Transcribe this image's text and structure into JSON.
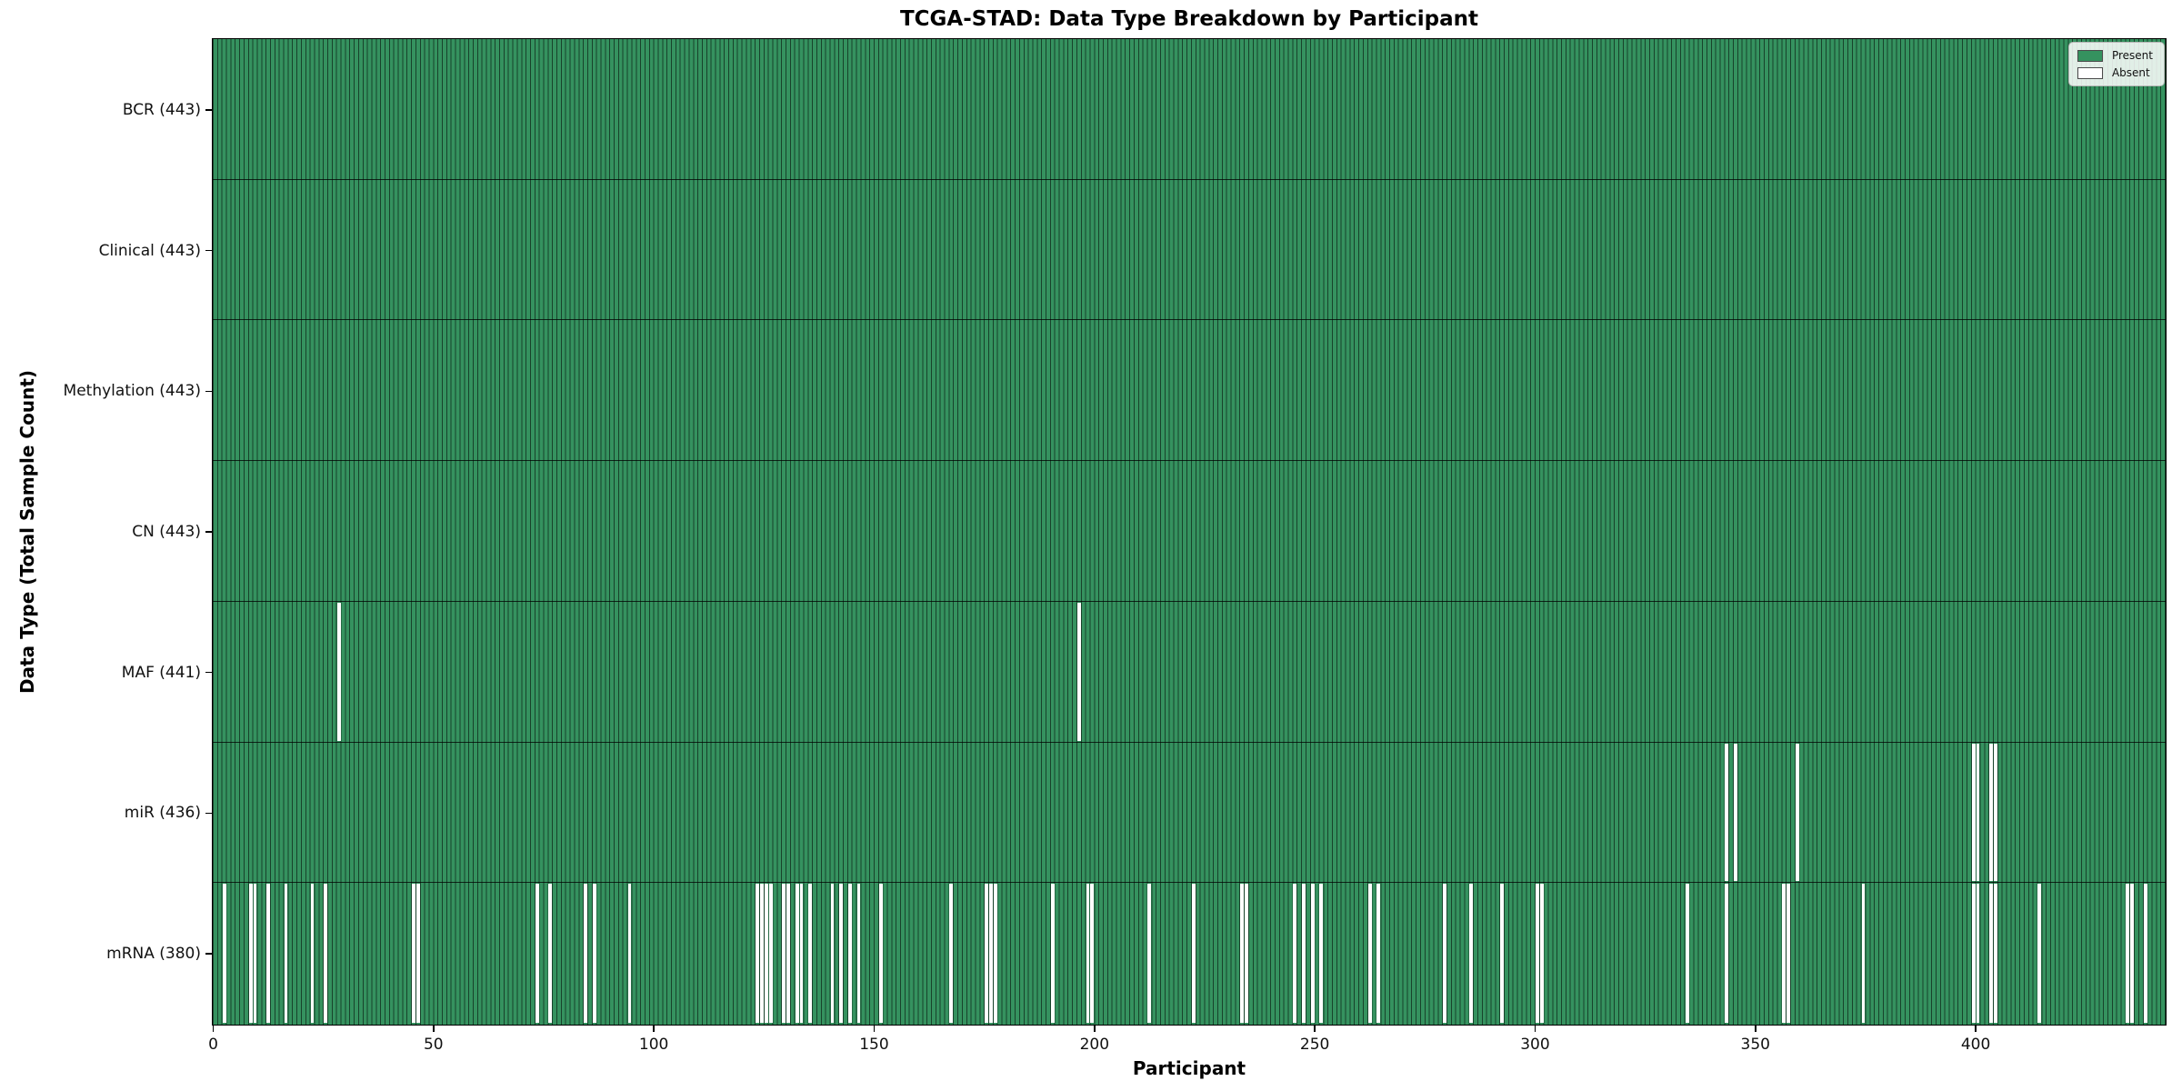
{
  "title": "TCGA-STAD: Data Type Breakdown by Participant",
  "x_axis_label": "Participant",
  "y_axis_label": "Data Type (Total Sample Count)",
  "legend": {
    "present_label": "Present",
    "absent_label": "Absent"
  },
  "colors": {
    "present_fill": "#35925f",
    "absent_fill": "#ffffff",
    "bar_edge": "rgba(0,0,0,0.55)",
    "row_divider": "rgba(0,0,0,0.75)",
    "plot_border": "#000000"
  },
  "chart_data": {
    "type": "heatmap",
    "title": "TCGA-STAD: Data Type Breakdown by Participant",
    "xlabel": "Participant",
    "ylabel": "Data Type (Total Sample Count)",
    "x_range": [
      0,
      443
    ],
    "n_participants": 443,
    "x_ticks": [
      0,
      50,
      100,
      150,
      200,
      250,
      300,
      350,
      400
    ],
    "legend_entries": [
      "Present",
      "Absent"
    ],
    "legend_position": "upper right",
    "grid": false,
    "rows": [
      {
        "label": "BCR",
        "total_samples": 443,
        "tick_label": "BCR (443)",
        "absent_participants": []
      },
      {
        "label": "Clinical",
        "total_samples": 443,
        "tick_label": "Clinical (443)",
        "absent_participants": []
      },
      {
        "label": "Methylation",
        "total_samples": 443,
        "tick_label": "Methylation (443)",
        "absent_participants": []
      },
      {
        "label": "CN",
        "total_samples": 443,
        "tick_label": "CN (443)",
        "absent_participants": []
      },
      {
        "label": "MAF",
        "total_samples": 441,
        "tick_label": "MAF (441)",
        "absent_participants": [
          28,
          196
        ]
      },
      {
        "label": "miR",
        "total_samples": 436,
        "tick_label": "miR (436)",
        "absent_participants": [
          343,
          345,
          359,
          399,
          400,
          403,
          404
        ]
      },
      {
        "label": "mRNA",
        "total_samples": 380,
        "tick_label": "mRNA (380)",
        "absent_participants": [
          2,
          8,
          9,
          12,
          16,
          22,
          25,
          45,
          46,
          73,
          76,
          84,
          86,
          94,
          123,
          124,
          125,
          126,
          129,
          130,
          132,
          133,
          135,
          140,
          142,
          144,
          146,
          151,
          167,
          175,
          176,
          177,
          190,
          198,
          199,
          212,
          222,
          233,
          234,
          245,
          247,
          249,
          251,
          262,
          264,
          279,
          285,
          292,
          300,
          301,
          334,
          343,
          356,
          357,
          374,
          399,
          400,
          403,
          404,
          414,
          434,
          435,
          438
        ]
      }
    ]
  }
}
